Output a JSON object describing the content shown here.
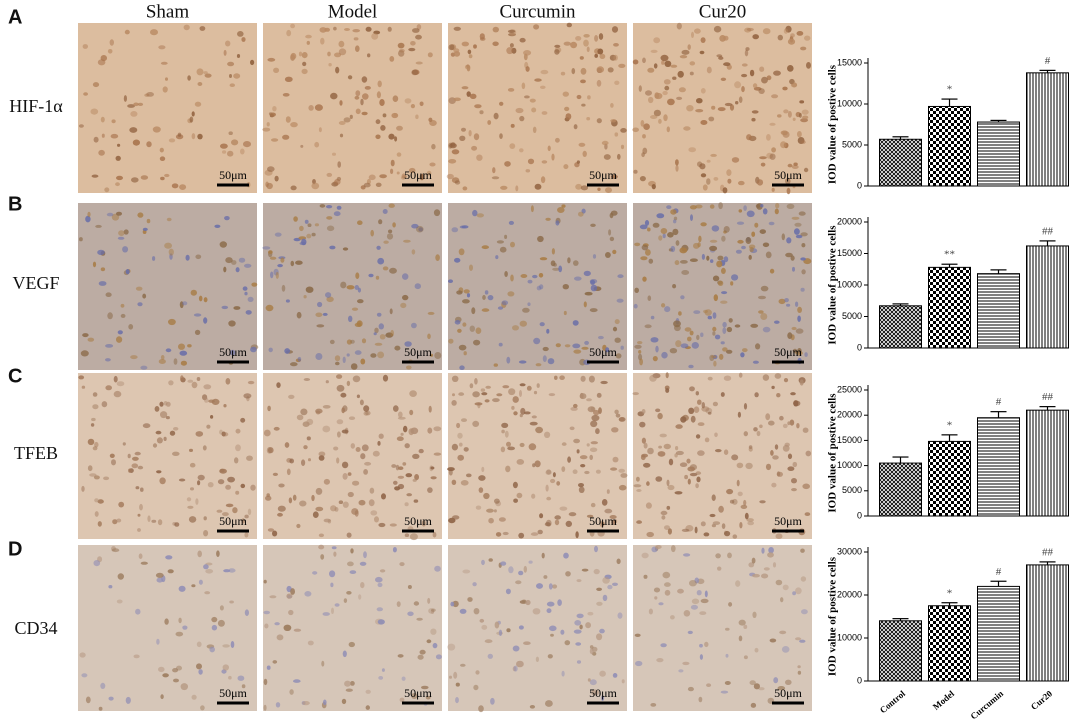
{
  "figure": {
    "panel_labels": [
      "A",
      "B",
      "C",
      "D"
    ],
    "columns": [
      "Sham",
      "Model",
      "Curcumin",
      "Cur20"
    ],
    "rows": [
      "HIF-1α",
      "VEGF",
      "TFEB",
      "CD34"
    ],
    "scale_bar": "50μm"
  },
  "chart_data": [
    {
      "type": "bar",
      "ylabel": "IOD value of postive cells",
      "categories": [
        null,
        null,
        null,
        null
      ],
      "values": [
        5700,
        9700,
        7800,
        13800
      ],
      "errors": [
        300,
        900,
        200,
        300
      ],
      "annotations": [
        null,
        "*",
        null,
        "#"
      ],
      "ylim": [
        0,
        15000
      ],
      "yticks": [
        0,
        5000,
        10000,
        15000
      ],
      "color": "#000000",
      "fill_patterns": [
        "crosshatch",
        "checker",
        "horizontal",
        "vertical"
      ]
    },
    {
      "type": "bar",
      "ylabel": "IOD value of postive cells",
      "categories": [
        null,
        null,
        null,
        null
      ],
      "values": [
        6700,
        12800,
        11800,
        16200
      ],
      "errors": [
        300,
        500,
        600,
        800
      ],
      "annotations": [
        null,
        "**",
        null,
        "##"
      ],
      "ylim": [
        0,
        20000
      ],
      "yticks": [
        0,
        5000,
        10000,
        15000,
        20000
      ],
      "color": "#000000",
      "fill_patterns": [
        "crosshatch",
        "checker",
        "horizontal",
        "vertical"
      ]
    },
    {
      "type": "bar",
      "ylabel": "IOD value of postive cells",
      "categories": [
        null,
        null,
        null,
        null
      ],
      "values": [
        10500,
        14800,
        19500,
        21000
      ],
      "errors": [
        1200,
        1300,
        1200,
        700
      ],
      "annotations": [
        null,
        "*",
        "#",
        "##"
      ],
      "ylim": [
        0,
        25000
      ],
      "yticks": [
        0,
        5000,
        10000,
        15000,
        20000,
        25000
      ],
      "color": "#000000",
      "fill_patterns": [
        "crosshatch",
        "checker",
        "horizontal",
        "vertical"
      ]
    },
    {
      "type": "bar",
      "ylabel": "IOD value of postive cells",
      "categories": [
        "Control",
        "Model",
        "Curcumin",
        "Cur20"
      ],
      "values": [
        14000,
        17500,
        22000,
        27000
      ],
      "errors": [
        500,
        700,
        1200,
        700
      ],
      "annotations": [
        null,
        "*",
        "#",
        "##"
      ],
      "ylim": [
        0,
        30000
      ],
      "yticks": [
        0,
        10000,
        20000,
        30000
      ],
      "color": "#000000",
      "fill_patterns": [
        "crosshatch",
        "checker",
        "horizontal",
        "vertical"
      ]
    }
  ]
}
